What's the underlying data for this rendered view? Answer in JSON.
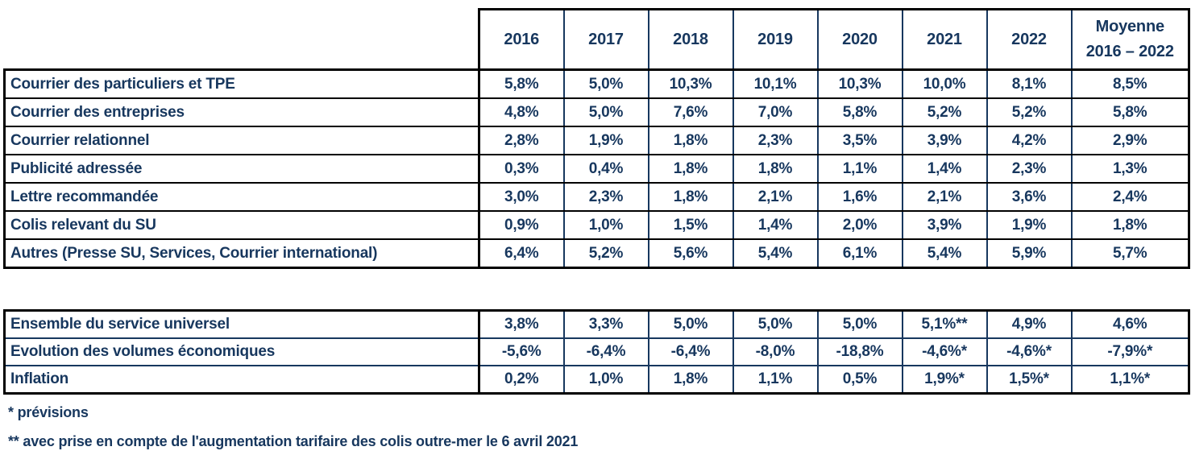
{
  "colors": {
    "navy_text": "#17375E",
    "red_text": "#E30613",
    "grid_outer": "#000000",
    "grid_inner_vertical": "#17375E"
  },
  "header": {
    "years": [
      "2016",
      "2017",
      "2018",
      "2019",
      "2020",
      "2021",
      "2022"
    ],
    "average_line1": "Moyenne",
    "average_line2": "2016 – 2022"
  },
  "section1": {
    "rows": [
      {
        "label": "Courrier des particuliers et TPE",
        "values": [
          "5,8%",
          "5,0%",
          "10,3%",
          "10,1%",
          "10,3%",
          "10,0%",
          "8,1%",
          "8,5%"
        ]
      },
      {
        "label": "Courrier des entreprises",
        "values": [
          "4,8%",
          "5,0%",
          "7,6%",
          "7,0%",
          "5,8%",
          "5,2%",
          "5,2%",
          "5,8%"
        ]
      },
      {
        "label": "Courrier relationnel",
        "values": [
          "2,8%",
          "1,9%",
          "1,8%",
          "2,3%",
          "3,5%",
          "3,9%",
          "4,2%",
          "2,9%"
        ]
      },
      {
        "label": "Publicité adressée",
        "values": [
          "0,3%",
          "0,4%",
          "1,8%",
          "1,8%",
          "1,1%",
          "1,4%",
          "2,3%",
          "1,3%"
        ]
      },
      {
        "label": "Lettre recommandée",
        "values": [
          "3,0%",
          "2,3%",
          "1,8%",
          "2,1%",
          "1,6%",
          "2,1%",
          "3,6%",
          "2,4%"
        ]
      },
      {
        "label": "Colis relevant du SU",
        "values": [
          "0,9%",
          "1,0%",
          "1,5%",
          "1,4%",
          "2,0%",
          "3,9%",
          "1,9%",
          "1,8%"
        ]
      },
      {
        "label": "Autres (Presse SU, Services, Courrier international)",
        "values": [
          "6,4%",
          "5,2%",
          "5,6%",
          "5,4%",
          "6,1%",
          "5,4%",
          "5,9%",
          "5,7%"
        ]
      }
    ]
  },
  "section2": {
    "rows": [
      {
        "label": "Ensemble du service universel",
        "values": [
          "3,8%",
          "3,3%",
          "5,0%",
          "5,0%",
          "5,0%",
          "5,1%**",
          "4,9%",
          "4,6%"
        ],
        "values_color": "red"
      },
      {
        "label": "Evolution des volumes économiques",
        "values": [
          "-5,6%",
          "-6,4%",
          "-6,4%",
          "-8,0%",
          "-18,8%",
          "-4,6%*",
          "-4,6%*",
          "-7,9%*"
        ],
        "values_color": "navy"
      },
      {
        "label": "Inflation",
        "values": [
          "0,2%",
          "1,0%",
          "1,8%",
          "1,1%",
          "0,5%",
          "1,9%*",
          "1,5%*",
          "1,1%*"
        ],
        "values_color": "navy"
      }
    ]
  },
  "footnotes": {
    "note1": "* prévisions",
    "note2": "** avec prise en compte de l'augmentation tarifaire des colis outre-mer le 6 avril 2021"
  }
}
